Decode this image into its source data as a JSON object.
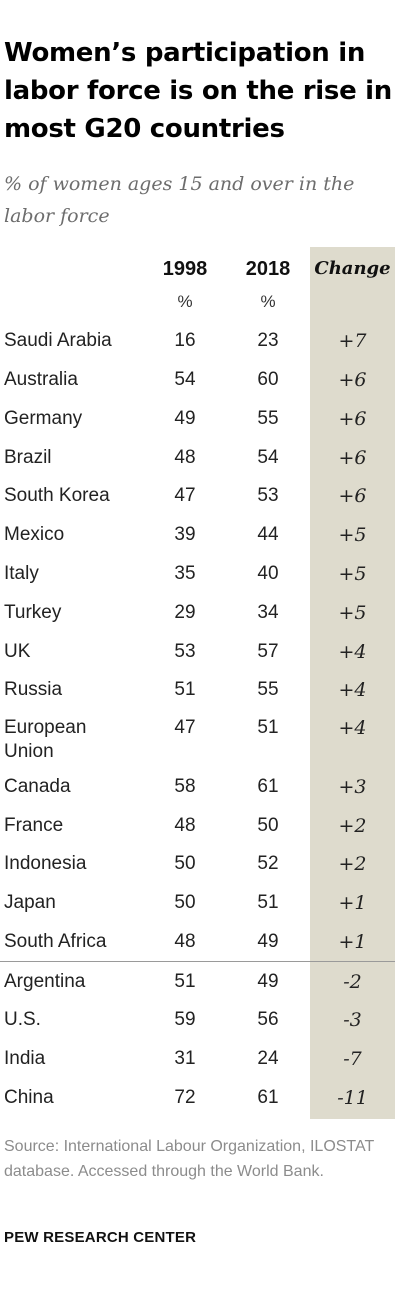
{
  "title": "Women’s participation in labor force is on the rise in most G20 countries",
  "subtitle": "% of women ages 15 and over in the labor force",
  "columns": {
    "y1998": "1998",
    "y2018": "2018",
    "change": "Change",
    "unit": "%"
  },
  "source": "Source: International Labour Organization, ILOSTAT database. Accessed through the World Bank.",
  "brand": "PEW RESEARCH CENTER",
  "colors": {
    "change_column_bg": "#dedbcd",
    "divider": "#9a9a9a"
  },
  "chart_data": {
    "type": "table",
    "headers": [
      "",
      "1998",
      "2018",
      "Change"
    ],
    "rows": [
      {
        "country": "Saudi Arabia",
        "y1998": "16",
        "y2018": "23",
        "change": "+7"
      },
      {
        "country": "Australia",
        "y1998": "54",
        "y2018": "60",
        "change": "+6"
      },
      {
        "country": "Germany",
        "y1998": "49",
        "y2018": "55",
        "change": "+6"
      },
      {
        "country": "Brazil",
        "y1998": "48",
        "y2018": "54",
        "change": "+6"
      },
      {
        "country": "South Korea",
        "y1998": "47",
        "y2018": "53",
        "change": "+6"
      },
      {
        "country": "Mexico",
        "y1998": "39",
        "y2018": "44",
        "change": "+5"
      },
      {
        "country": "Italy",
        "y1998": "35",
        "y2018": "40",
        "change": "+5"
      },
      {
        "country": "Turkey",
        "y1998": "29",
        "y2018": "34",
        "change": "+5"
      },
      {
        "country": "UK",
        "y1998": "53",
        "y2018": "57",
        "change": "+4"
      },
      {
        "country": "Russia",
        "y1998": "51",
        "y2018": "55",
        "change": "+4"
      },
      {
        "country": "European Union",
        "y1998": "47",
        "y2018": "51",
        "change": "+4"
      },
      {
        "country": "Canada",
        "y1998": "58",
        "y2018": "61",
        "change": "+3"
      },
      {
        "country": "France",
        "y1998": "48",
        "y2018": "50",
        "change": "+2"
      },
      {
        "country": "Indonesia",
        "y1998": "50",
        "y2018": "52",
        "change": "+2"
      },
      {
        "country": "Japan",
        "y1998": "50",
        "y2018": "51",
        "change": "+1"
      },
      {
        "country": "South Africa",
        "y1998": "48",
        "y2018": "49",
        "change": "+1"
      },
      {
        "country": "Argentina",
        "y1998": "51",
        "y2018": "49",
        "change": "-2"
      },
      {
        "country": "U.S.",
        "y1998": "59",
        "y2018": "56",
        "change": "-3"
      },
      {
        "country": "India",
        "y1998": "31",
        "y2018": "24",
        "change": "-7"
      },
      {
        "country": "China",
        "y1998": "72",
        "y2018": "61",
        "change": "-11"
      }
    ]
  }
}
